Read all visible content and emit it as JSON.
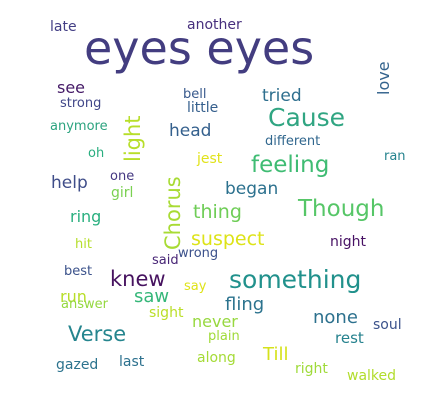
{
  "words": [
    {
      "text": "eyes eyes",
      "color": "#433d80"
    },
    {
      "text": "Cause",
      "color": "#30a582"
    },
    {
      "text": "feeling",
      "color": "#3fbc73"
    },
    {
      "text": "Though",
      "color": "#56c667"
    },
    {
      "text": "something",
      "color": "#21918c"
    },
    {
      "text": "knew",
      "color": "#46125f"
    },
    {
      "text": "Verse",
      "color": "#25858e"
    },
    {
      "text": "Chorus",
      "color": "#a8db34"
    },
    {
      "text": "light",
      "color": "#b7de2a"
    },
    {
      "text": "suspect",
      "color": "#dde318"
    },
    {
      "text": "thing",
      "color": "#6fcd57"
    },
    {
      "text": "began",
      "color": "#2c718e"
    },
    {
      "text": "head",
      "color": "#34608d"
    },
    {
      "text": "tried",
      "color": "#2e6f8e"
    },
    {
      "text": "see",
      "color": "#451a67"
    },
    {
      "text": "help",
      "color": "#3f4d89"
    },
    {
      "text": "ring",
      "color": "#29af7f"
    },
    {
      "text": "run",
      "color": "#b8de29"
    },
    {
      "text": "saw",
      "color": "#35b779"
    },
    {
      "text": "fling",
      "color": "#2c738e"
    },
    {
      "text": "never",
      "color": "#97d83f"
    },
    {
      "text": "none",
      "color": "#2d718e"
    },
    {
      "text": "Till",
      "color": "#d5e21b"
    },
    {
      "text": "love",
      "color": "#33638d"
    },
    {
      "text": "another",
      "color": "#472f7d"
    },
    {
      "text": "late",
      "color": "#433e85"
    },
    {
      "text": "bell",
      "color": "#38598c"
    },
    {
      "text": "little",
      "color": "#355f8d"
    },
    {
      "text": "strong",
      "color": "#404688"
    },
    {
      "text": "anymore",
      "color": "#2ca37f"
    },
    {
      "text": "different",
      "color": "#31678e"
    },
    {
      "text": "oh",
      "color": "#2aae80"
    },
    {
      "text": "one",
      "color": "#453882"
    },
    {
      "text": "girl",
      "color": "#7ad151"
    },
    {
      "text": "jest",
      "color": "#e1e31b"
    },
    {
      "text": "ran",
      "color": "#25838e"
    },
    {
      "text": "hit",
      "color": "#b5de2b"
    },
    {
      "text": "said",
      "color": "#482576"
    },
    {
      "text": "wrong",
      "color": "#3b518b"
    },
    {
      "text": "night",
      "color": "#471164"
    },
    {
      "text": "best",
      "color": "#3b528b"
    },
    {
      "text": "say",
      "color": "#dfe318"
    },
    {
      "text": "answer",
      "color": "#95d840"
    },
    {
      "text": "sight",
      "color": "#bade28"
    },
    {
      "text": "soul",
      "color": "#3b528b"
    },
    {
      "text": "plain",
      "color": "#a0da39"
    },
    {
      "text": "rest",
      "color": "#26828e"
    },
    {
      "text": "gazed",
      "color": "#2c738e"
    },
    {
      "text": "last",
      "color": "#2d718e"
    },
    {
      "text": "along",
      "color": "#a5db36"
    },
    {
      "text": "right",
      "color": "#9fda3a"
    },
    {
      "text": "walked",
      "color": "#b2dd2d"
    }
  ]
}
